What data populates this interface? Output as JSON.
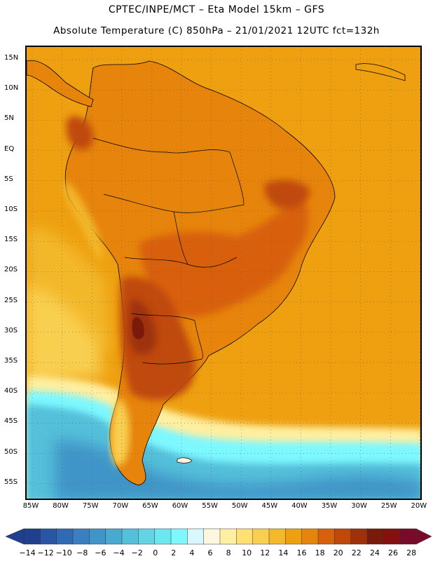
{
  "header": {
    "line1": "CPTEC/INPE/MCT –  Eta Model 15km – GFS",
    "line2": "Absolute Temperature (C) 850hPa – 21/01/2021 12UTC fct=132h"
  },
  "map": {
    "latitude_labels": [
      "15N",
      "10N",
      "5N",
      "EQ",
      "5S",
      "10S",
      "15S",
      "20S",
      "25S",
      "30S",
      "35S",
      "40S",
      "45S",
      "50S",
      "55S"
    ],
    "longitude_labels": [
      "85W",
      "80W",
      "75W",
      "70W",
      "65W",
      "60W",
      "55W",
      "50W",
      "45W",
      "40W",
      "35W",
      "30W",
      "25W",
      "20W"
    ],
    "colors": {
      "ocean_warm": "#f0b020",
      "land_warm": "#e88a10",
      "hot": "#d05a0a",
      "very_hot": "#a8380a",
      "cold_sea": "#40b8d8",
      "frame": "#000000"
    }
  },
  "colorbar": {
    "labels": [
      "-14",
      "-12",
      "-10",
      "-8",
      "-6",
      "-4",
      "-2",
      "0",
      "2",
      "4",
      "6",
      "8",
      "10",
      "12",
      "14",
      "16",
      "18",
      "20",
      "22",
      "24",
      "26",
      "28"
    ],
    "colors": [
      "#1f3f8f",
      "#2a55a5",
      "#2f6ab5",
      "#3a80c0",
      "#3f95c8",
      "#48aad0",
      "#55c0da",
      "#62d5e5",
      "#6ae8ef",
      "#7df8ff",
      "#d8f7ff",
      "#fff6df",
      "#ffefa0",
      "#ffe070",
      "#f9cf50",
      "#f3b82c",
      "#eea010",
      "#e6840c",
      "#d8600a",
      "#c04808",
      "#9e300a",
      "#7a1a0a",
      "#861010",
      "#7a0a2a"
    ]
  }
}
